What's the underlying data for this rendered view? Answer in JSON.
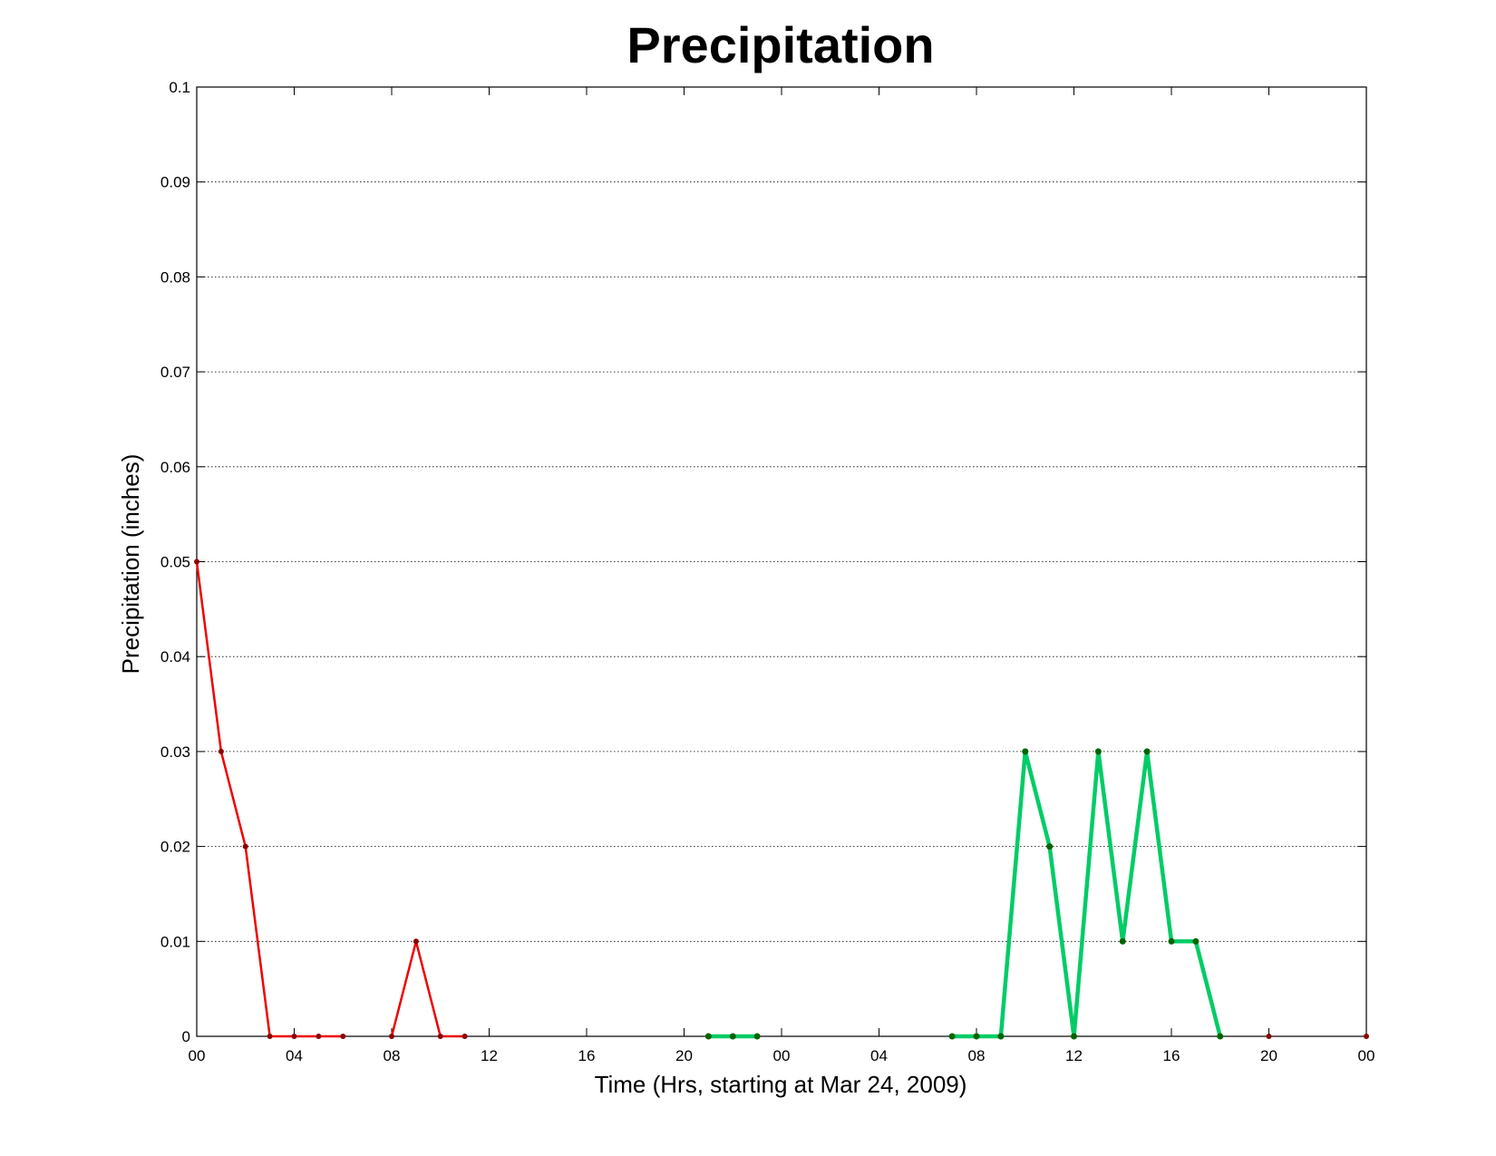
{
  "chart_data": {
    "type": "line",
    "title": "Precipitation",
    "xlabel": "Time (Hrs, starting at Mar 24, 2009)",
    "ylabel": "Precipitation (inches)",
    "x_unit": "hours",
    "xlim": [
      0,
      48
    ],
    "ylim": [
      0,
      0.1
    ],
    "grid": true,
    "legend": "none",
    "x_ticks": [
      {
        "value": 0,
        "label": "00"
      },
      {
        "value": 4,
        "label": "04"
      },
      {
        "value": 8,
        "label": "08"
      },
      {
        "value": 12,
        "label": "12"
      },
      {
        "value": 16,
        "label": "16"
      },
      {
        "value": 20,
        "label": "20"
      },
      {
        "value": 24,
        "label": "00"
      },
      {
        "value": 28,
        "label": "04"
      },
      {
        "value": 32,
        "label": "08"
      },
      {
        "value": 36,
        "label": "12"
      },
      {
        "value": 40,
        "label": "16"
      },
      {
        "value": 44,
        "label": "20"
      },
      {
        "value": 48,
        "label": "00"
      }
    ],
    "y_ticks": [
      {
        "value": 0,
        "label": "0"
      },
      {
        "value": 0.01,
        "label": "0.01"
      },
      {
        "value": 0.02,
        "label": "0.02"
      },
      {
        "value": 0.03,
        "label": "0.03"
      },
      {
        "value": 0.04,
        "label": "0.04"
      },
      {
        "value": 0.05,
        "label": "0.05"
      },
      {
        "value": 0.06,
        "label": "0.06"
      },
      {
        "value": 0.07,
        "label": "0.07"
      },
      {
        "value": 0.08,
        "label": "0.08"
      },
      {
        "value": 0.09,
        "label": "0.09"
      },
      {
        "value": 0.1,
        "label": "0.1"
      }
    ],
    "series": [
      {
        "color": "#ee0000",
        "marker_color": "#8b0000",
        "segments": [
          [
            [
              0,
              0.05
            ],
            [
              1,
              0.03
            ],
            [
              2,
              0.02
            ],
            [
              3,
              0
            ],
            [
              4,
              0
            ],
            [
              5,
              0
            ],
            [
              6,
              0
            ]
          ],
          [
            [
              8,
              0
            ],
            [
              9,
              0.01
            ],
            [
              10,
              0
            ],
            [
              11,
              0
            ]
          ]
        ]
      },
      {
        "color": "#00cc66",
        "marker_color": "#006400",
        "segments": [
          [
            [
              21,
              0
            ],
            [
              22,
              0
            ],
            [
              23,
              0
            ]
          ],
          [
            [
              31,
              0
            ],
            [
              32,
              0
            ],
            [
              33,
              0
            ],
            [
              34,
              0.03
            ],
            [
              35,
              0.02
            ],
            [
              36,
              0
            ],
            [
              37,
              0.03
            ],
            [
              38,
              0.01
            ],
            [
              39,
              0.03
            ],
            [
              40,
              0.01
            ],
            [
              41,
              0.01
            ],
            [
              42,
              0
            ]
          ]
        ]
      },
      {
        "color": "#8b0000",
        "marker_color": "#8b0000",
        "segments": [
          [
            [
              44,
              0
            ]
          ],
          [
            [
              48,
              0
            ]
          ]
        ]
      }
    ]
  }
}
